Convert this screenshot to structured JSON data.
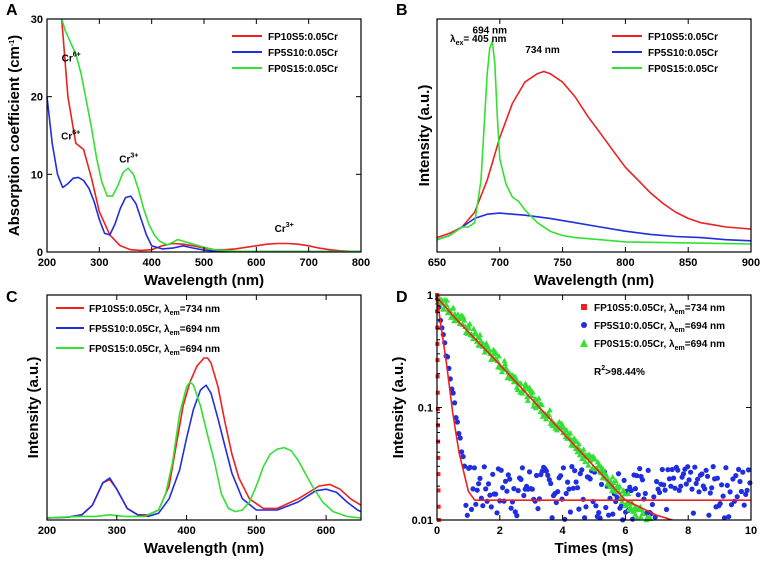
{
  "colors": {
    "red": "#ee2020",
    "blue": "#1f2ee0",
    "green": "#33e033"
  },
  "chart_data": [
    {
      "id": "A",
      "panel_label": "A",
      "type": "line",
      "xlabel": "Wavelength (nm)",
      "ylabel": "Absorption coefficient (cm-1)",
      "ylabel_main": "Absorption coefficient (cm",
      "ylabel_sup": "-1",
      "ylabel_end": ")",
      "xlim": [
        200,
        800
      ],
      "ylim": [
        0,
        30
      ],
      "xticks": [
        200,
        300,
        400,
        500,
        600,
        700,
        800
      ],
      "yticks": [
        0,
        10,
        20,
        30
      ],
      "legend": [
        "FP10S5:0.05Cr",
        "FP5S10:0.05Cr",
        "FP0S15:0.05Cr"
      ],
      "annotations": [
        {
          "base": "Cr",
          "sup": "6+",
          "x": 228,
          "y": 24.5
        },
        {
          "base": "Cr",
          "sup": "6+",
          "x": 227,
          "y": 14.5
        },
        {
          "base": "Cr",
          "sup": "3+",
          "x": 338,
          "y": 11.5
        },
        {
          "base": "Cr",
          "sup": "3+",
          "x": 635,
          "y": 2.6
        }
      ],
      "series": [
        {
          "name": "FP10S5:0.05Cr",
          "color": "red",
          "x": [
            228,
            240,
            255,
            270,
            285,
            300,
            320,
            340,
            360,
            380,
            400,
            420,
            440,
            460,
            480,
            500,
            520,
            540,
            560,
            580,
            600,
            620,
            640,
            660,
            680,
            700,
            720,
            740,
            760,
            780,
            800
          ],
          "y": [
            30,
            20,
            14,
            13.2,
            9.5,
            5.2,
            2.2,
            0.8,
            0.3,
            0.2,
            0.3,
            0.8,
            1.1,
            1,
            0.8,
            0.5,
            0.3,
            0.3,
            0.4,
            0.6,
            0.8,
            1,
            1.1,
            1.1,
            1,
            0.8,
            0.5,
            0.3,
            0.15,
            0.08,
            0.05
          ]
        },
        {
          "name": "FP5S10:0.05Cr",
          "color": "blue",
          "x": [
            200,
            210,
            220,
            230,
            240,
            250,
            260,
            270,
            280,
            290,
            300,
            310,
            320,
            330,
            340,
            350,
            360,
            370,
            380,
            390,
            400,
            420,
            440,
            460,
            480,
            500,
            520,
            560,
            600,
            700,
            800
          ],
          "y": [
            20,
            14,
            10,
            8.3,
            8.8,
            9.5,
            9.6,
            9.2,
            8.2,
            6.5,
            4.2,
            2.4,
            2.2,
            3.6,
            5.6,
            7,
            7.2,
            6.2,
            4.2,
            2.2,
            0.8,
            0.4,
            0.5,
            0.8,
            0.5,
            0.25,
            0.1,
            0.05,
            0.05,
            0.05,
            0.05
          ]
        },
        {
          "name": "FP0S15:0.05Cr",
          "color": "green",
          "x": [
            228,
            235,
            245,
            255,
            265,
            275,
            285,
            295,
            305,
            315,
            325,
            335,
            345,
            355,
            365,
            375,
            385,
            395,
            405,
            415,
            430,
            450,
            470,
            500,
            520,
            560,
            600,
            700,
            800
          ],
          "y": [
            30,
            28.5,
            27,
            25.5,
            23,
            19.5,
            16,
            12,
            9,
            7.2,
            7.2,
            8.5,
            10.2,
            10.8,
            10,
            8,
            5.5,
            3.5,
            2.2,
            1.4,
            0.9,
            1.6,
            1.2,
            0.6,
            0.3,
            0.1,
            0.05,
            0.05,
            0.05
          ]
        }
      ]
    },
    {
      "id": "B",
      "panel_label": "B",
      "type": "line",
      "xlabel": "Wavelength (nm)",
      "ylabel": "Intensity (a.u.)",
      "xlim": [
        650,
        900
      ],
      "ylim": [
        0,
        1
      ],
      "xticks": [
        650,
        700,
        750,
        800,
        850,
        900
      ],
      "yticks": [],
      "legend": [
        "FP10S5:0.05Cr",
        "FP5S10:0.05Cr",
        "FP0S15:0.05Cr"
      ],
      "excitation": {
        "base": "λ",
        "sub": "ex",
        "rest": "= 405 nm"
      },
      "annotations": [
        {
          "text": "694 nm",
          "x": 692,
          "y": 0.95
        },
        {
          "text": "734 nm",
          "x": 734,
          "y": 0.86
        }
      ],
      "series": [
        {
          "name": "FP10S5:0.05Cr",
          "color": "red",
          "x": [
            650,
            660,
            670,
            680,
            690,
            700,
            710,
            720,
            730,
            735,
            740,
            750,
            760,
            770,
            780,
            790,
            800,
            810,
            820,
            830,
            840,
            850,
            860,
            870,
            880,
            890,
            900
          ],
          "y": [
            0.03,
            0.05,
            0.08,
            0.15,
            0.3,
            0.5,
            0.66,
            0.76,
            0.8,
            0.81,
            0.8,
            0.76,
            0.69,
            0.6,
            0.52,
            0.44,
            0.36,
            0.3,
            0.24,
            0.19,
            0.15,
            0.12,
            0.1,
            0.09,
            0.08,
            0.075,
            0.07
          ]
        },
        {
          "name": "FP5S10:0.05Cr",
          "color": "blue",
          "x": [
            650,
            660,
            670,
            680,
            690,
            700,
            710,
            720,
            740,
            760,
            780,
            800,
            820,
            840,
            860,
            880,
            900
          ],
          "y": [
            0.02,
            0.04,
            0.08,
            0.12,
            0.14,
            0.145,
            0.14,
            0.135,
            0.12,
            0.1,
            0.08,
            0.06,
            0.045,
            0.035,
            0.03,
            0.02,
            0.015
          ]
        },
        {
          "name": "FP0S15:0.05Cr",
          "color": "green",
          "x": [
            650,
            660,
            665,
            670,
            675,
            680,
            685,
            690,
            692,
            694,
            696,
            698,
            700,
            705,
            710,
            715,
            720,
            730,
            740,
            750,
            760,
            780,
            800,
            850,
            900
          ],
          "y": [
            0.02,
            0.04,
            0.06,
            0.08,
            0.08,
            0.1,
            0.3,
            0.8,
            0.92,
            0.95,
            0.85,
            0.6,
            0.4,
            0.28,
            0.22,
            0.2,
            0.16,
            0.1,
            0.06,
            0.04,
            0.03,
            0.02,
            0.01,
            0.005,
            0
          ]
        }
      ]
    },
    {
      "id": "C",
      "panel_label": "C",
      "type": "line",
      "xlabel": "Wavelength (nm)",
      "ylabel": "Intensity (a.u.)",
      "xlim": [
        200,
        650
      ],
      "ylim": [
        0,
        1
      ],
      "xticks": [
        200,
        300,
        400,
        500,
        600
      ],
      "yticks": [],
      "legend": [
        {
          "text": "FP10S5:0.05Cr, λ",
          "sub": "em",
          "rest": "=734 nm"
        },
        {
          "text": "FP5S10:0.05Cr, λ",
          "sub": "em",
          "rest": "=694 nm"
        },
        {
          "text": "FP0S15:0.05Cr, λ",
          "sub": "em",
          "rest": "=694 nm"
        }
      ],
      "series": [
        {
          "name": "FP10S5:0.05Cr",
          "color": "red",
          "x": [
            200,
            230,
            250,
            265,
            280,
            290,
            300,
            315,
            330,
            345,
            360,
            375,
            385,
            395,
            405,
            415,
            425,
            430,
            435,
            445,
            455,
            465,
            475,
            490,
            510,
            530,
            560,
            590,
            605,
            620,
            635,
            650
          ],
          "y": [
            0,
            0.005,
            0.02,
            0.08,
            0.22,
            0.24,
            0.18,
            0.06,
            0.02,
            0.02,
            0.05,
            0.2,
            0.45,
            0.7,
            0.85,
            0.95,
            1,
            1,
            0.97,
            0.82,
            0.6,
            0.4,
            0.25,
            0.12,
            0.06,
            0.06,
            0.12,
            0.2,
            0.21,
            0.18,
            0.12,
            0.08
          ]
        },
        {
          "name": "FP5S10:0.05Cr",
          "color": "blue",
          "x": [
            200,
            230,
            250,
            265,
            280,
            290,
            300,
            315,
            330,
            345,
            360,
            375,
            390,
            400,
            410,
            420,
            428,
            435,
            445,
            455,
            465,
            480,
            500,
            530,
            560,
            585,
            600,
            615,
            630,
            645,
            650
          ],
          "y": [
            0,
            0.005,
            0.02,
            0.08,
            0.22,
            0.25,
            0.18,
            0.06,
            0.02,
            0.01,
            0.03,
            0.12,
            0.3,
            0.5,
            0.68,
            0.8,
            0.83,
            0.78,
            0.62,
            0.45,
            0.28,
            0.12,
            0.05,
            0.05,
            0.1,
            0.17,
            0.18,
            0.16,
            0.1,
            0.05,
            0.04
          ]
        },
        {
          "name": "FP0S15:0.05Cr",
          "color": "green",
          "x": [
            200,
            220,
            250,
            270,
            290,
            310,
            340,
            360,
            370,
            380,
            390,
            400,
            405,
            410,
            420,
            430,
            440,
            450,
            460,
            470,
            480,
            490,
            500,
            510,
            520,
            530,
            540,
            550,
            560,
            570,
            580,
            595,
            610,
            630,
            650
          ],
          "y": [
            0,
            0.005,
            0.01,
            0.01,
            0.02,
            0.01,
            0.01,
            0.05,
            0.15,
            0.35,
            0.65,
            0.82,
            0.85,
            0.83,
            0.7,
            0.52,
            0.35,
            0.15,
            0.06,
            0.04,
            0.05,
            0.1,
            0.2,
            0.32,
            0.4,
            0.43,
            0.44,
            0.42,
            0.36,
            0.28,
            0.2,
            0.1,
            0.04,
            0.01,
            0
          ]
        }
      ]
    },
    {
      "id": "D",
      "panel_label": "D",
      "type": "scatter",
      "xlabel": "Times (ms)",
      "ylabel": "Intensity (a.u.)",
      "xlim": [
        0,
        10
      ],
      "ylim": [
        0.01,
        1
      ],
      "yscale": "log",
      "xticks": [
        0,
        2,
        4,
        6,
        8,
        10
      ],
      "yticks": [
        {
          "v": 0.01,
          "label": "0.01"
        },
        {
          "v": 0.1,
          "label": "0.1"
        },
        {
          "v": 1,
          "label": "1"
        }
      ],
      "legend": [
        {
          "text": "FP10S5:0.05Cr, λ",
          "sub": "em",
          "rest": "=734 nm",
          "marker": "square"
        },
        {
          "text": "FP5S10:0.05Cr, λ",
          "sub": "em",
          "rest": "=694 nm",
          "marker": "circle"
        },
        {
          "text": "FP0S15:0.05Cr, λ",
          "sub": "em",
          "rest": "=694 nm",
          "marker": "triangle"
        }
      ],
      "r_squared": {
        "base": "R",
        "sup": "2",
        "rest": ">98.44%"
      },
      "models": [
        {
          "name": "FP10S5:0.05Cr",
          "color": "red",
          "tau_ms": 0.012
        },
        {
          "name": "FP5S10:0.05Cr",
          "color": "blue",
          "tau_ms": 0.25,
          "floor": 0.015,
          "noise_range": [
            0.01,
            0.03
          ]
        },
        {
          "name": "FP0S15:0.05Cr",
          "color": "green",
          "tau_ms": 1.45,
          "floor": 0.0
        }
      ],
      "fit_curves": [
        {
          "color": "red",
          "x": [
            0,
            0.1,
            0.3,
            0.5,
            0.7,
            1,
            1.2,
            1.5,
            2,
            10
          ],
          "y": [
            1,
            0.6,
            0.25,
            0.09,
            0.04,
            0.018,
            0.015,
            0.015,
            0.015,
            0.015
          ]
        },
        {
          "color": "red",
          "x": [
            0,
            0.5,
            1,
            2,
            3,
            4,
            5,
            6,
            7,
            7.5
          ],
          "y": [
            0.95,
            0.66,
            0.47,
            0.24,
            0.12,
            0.06,
            0.03,
            0.015,
            0.011,
            0.01
          ]
        }
      ]
    }
  ]
}
